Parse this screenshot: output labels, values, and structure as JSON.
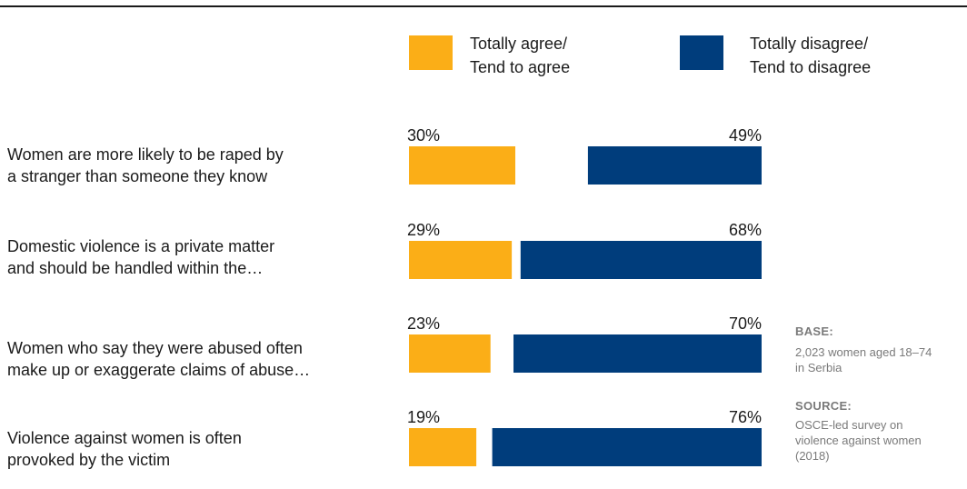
{
  "colors": {
    "agree": "#FBAE17",
    "disagree": "#003D7C",
    "text": "#1a1a1a",
    "note": "#7a7a7a"
  },
  "legend": [
    {
      "label": "Totally agree/\nTend to agree",
      "color": "#FBAE17"
    },
    {
      "label": "Totally disagree/\nTend to disagree",
      "color": "#003D7C"
    }
  ],
  "statements": [
    "Women are more likely to be raped by\na stranger than someone they know",
    "Domestic violence is a private matter\nand should be handled within the…",
    "Women who say they were abused often\nmake up or exaggerate claims of abuse…",
    "Violence against women is often\nprovoked by the victim"
  ],
  "notes": {
    "base_title": "BASE:",
    "base_text": "2,023 women aged 18–74\nin Serbia",
    "source_title": "SOURCE:",
    "source_text": "OSCE-led survey on\nviolence against women\n(2018)"
  },
  "chart_data": {
    "type": "bar",
    "orientation": "horizontal",
    "categories": [
      "Women are more likely to be raped by a stranger than someone they know",
      "Domestic violence is a private matter and should be handled within the…",
      "Women who say they were abused often make up or exaggerate claims of abuse…",
      "Violence against women is often provoked by the victim"
    ],
    "series": [
      {
        "name": "Totally agree/ Tend to agree",
        "values": [
          30,
          29,
          23,
          19
        ],
        "labels": [
          "30%",
          "29%",
          "23%",
          "19%"
        ],
        "color": "#FBAE17",
        "anchor": "left"
      },
      {
        "name": "Totally disagree/ Tend to disagree",
        "values": [
          49,
          68,
          70,
          76
        ],
        "labels": [
          "49%",
          "68%",
          "70%",
          "76%"
        ],
        "color": "#003D7C",
        "anchor": "right"
      }
    ],
    "unit": "%",
    "xlim": [
      0,
      100
    ],
    "grid": false,
    "legend_position": "top"
  }
}
